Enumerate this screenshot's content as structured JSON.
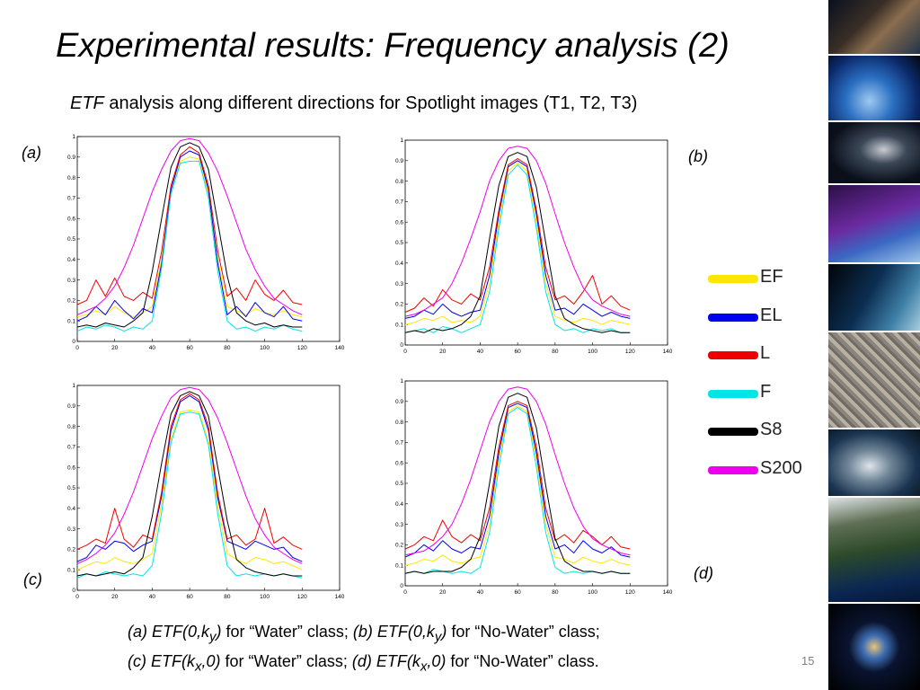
{
  "slide": {
    "title": "Experimental results: Frequency analysis (2)",
    "subtitle_etf": "ETF",
    "subtitle_rest": " analysis along different directions for Spotlight images (T1, T2, T3)",
    "page_number": "15"
  },
  "panel_labels": {
    "a": "(a)",
    "b": "(b)",
    "c": "(c)",
    "d": "(d)"
  },
  "legend": [
    {
      "label": "EF",
      "color": "#ffe600"
    },
    {
      "label": "EL",
      "color": "#0000ee"
    },
    {
      "label": "L",
      "color": "#ee0000"
    },
    {
      "label": "F",
      "color": "#00e5e5"
    },
    {
      "label": "S8",
      "color": "#000000"
    },
    {
      "label": "S200",
      "color": "#ee00ee"
    }
  ],
  "caption": {
    "a": "(a) ETF(0,k",
    "a_sub": "y",
    "a_close": ")",
    "a_text": " for “Water” class; ",
    "b": "(b) ETF(0,k",
    "b_sub": "y",
    "b_close": ")",
    "b_text": " for “No-Water” class;",
    "c": "(c) ETF(k",
    "c_sub": "x",
    "c_close": ",0)",
    "c_text": " for “Water” class; ",
    "d": "(d) ETF(k",
    "d_sub": "x",
    "d_close": ",0)",
    "d_text": " for “No-Water” class."
  },
  "side_images": [
    "earth-from-space",
    "earth-globe",
    "satellite",
    "satellite-over-earth",
    "earth-limb",
    "city-aerial",
    "space-station",
    "italy-satellite-view",
    "satellite-orbits"
  ],
  "chart_data": [
    {
      "id": "a",
      "type": "line",
      "xlim": [
        0,
        140
      ],
      "ylim": [
        0,
        1
      ],
      "xticks": [
        0,
        20,
        40,
        60,
        80,
        100,
        120,
        140
      ],
      "yticks": [
        0,
        0.1,
        0.2,
        0.3,
        0.4,
        0.5,
        0.6,
        0.7,
        0.8,
        0.9,
        1
      ],
      "x": [
        0,
        5,
        10,
        15,
        20,
        25,
        30,
        35,
        40,
        45,
        50,
        55,
        60,
        65,
        70,
        75,
        80,
        85,
        90,
        95,
        100,
        105,
        110,
        115,
        120
      ],
      "series": [
        {
          "name": "EF",
          "color": "#ffe600",
          "values": [
            0.12,
            0.13,
            0.15,
            0.13,
            0.17,
            0.14,
            0.12,
            0.14,
            0.17,
            0.4,
            0.72,
            0.88,
            0.9,
            0.89,
            0.72,
            0.4,
            0.17,
            0.15,
            0.13,
            0.16,
            0.14,
            0.13,
            0.15,
            0.13,
            0.12
          ]
        },
        {
          "name": "EL",
          "color": "#0000ee",
          "values": [
            0.1,
            0.12,
            0.17,
            0.13,
            0.2,
            0.15,
            0.11,
            0.16,
            0.14,
            0.38,
            0.74,
            0.9,
            0.93,
            0.91,
            0.74,
            0.38,
            0.13,
            0.17,
            0.12,
            0.19,
            0.14,
            0.12,
            0.17,
            0.11,
            0.1
          ]
        },
        {
          "name": "L",
          "color": "#ee0000",
          "values": [
            0.18,
            0.2,
            0.3,
            0.22,
            0.31,
            0.22,
            0.2,
            0.24,
            0.21,
            0.44,
            0.76,
            0.91,
            0.95,
            0.92,
            0.76,
            0.44,
            0.22,
            0.26,
            0.2,
            0.3,
            0.23,
            0.2,
            0.25,
            0.19,
            0.18
          ]
        },
        {
          "name": "F",
          "color": "#00e5e5",
          "values": [
            0.05,
            0.07,
            0.06,
            0.08,
            0.07,
            0.05,
            0.07,
            0.06,
            0.1,
            0.36,
            0.72,
            0.87,
            0.88,
            0.88,
            0.7,
            0.34,
            0.1,
            0.06,
            0.07,
            0.05,
            0.07,
            0.06,
            0.08,
            0.06,
            0.05
          ]
        },
        {
          "name": "S8",
          "color": "#000000",
          "values": [
            0.07,
            0.08,
            0.07,
            0.09,
            0.08,
            0.07,
            0.1,
            0.14,
            0.34,
            0.6,
            0.85,
            0.95,
            0.97,
            0.95,
            0.84,
            0.58,
            0.32,
            0.14,
            0.1,
            0.08,
            0.09,
            0.07,
            0.08,
            0.07,
            0.07
          ]
        },
        {
          "name": "S200",
          "color": "#ee00ee",
          "values": [
            0.13,
            0.15,
            0.17,
            0.21,
            0.27,
            0.36,
            0.47,
            0.6,
            0.73,
            0.84,
            0.93,
            0.98,
            0.99,
            0.98,
            0.92,
            0.83,
            0.71,
            0.58,
            0.45,
            0.35,
            0.27,
            0.21,
            0.18,
            0.15,
            0.13
          ]
        }
      ]
    },
    {
      "id": "b",
      "type": "line",
      "xlim": [
        0,
        140
      ],
      "ylim": [
        0,
        1
      ],
      "xticks": [
        0,
        20,
        40,
        60,
        80,
        100,
        120,
        140
      ],
      "yticks": [
        0,
        0.1,
        0.2,
        0.3,
        0.4,
        0.5,
        0.6,
        0.7,
        0.8,
        0.9,
        1
      ],
      "x": [
        0,
        5,
        10,
        15,
        20,
        25,
        30,
        35,
        40,
        45,
        50,
        55,
        60,
        65,
        70,
        75,
        80,
        85,
        90,
        95,
        100,
        105,
        110,
        115,
        120
      ],
      "series": [
        {
          "name": "EF",
          "color": "#ffe600",
          "values": [
            0.1,
            0.11,
            0.13,
            0.12,
            0.14,
            0.11,
            0.12,
            0.11,
            0.14,
            0.3,
            0.6,
            0.85,
            0.89,
            0.85,
            0.6,
            0.3,
            0.14,
            0.12,
            0.11,
            0.13,
            0.12,
            0.1,
            0.12,
            0.11,
            0.1
          ]
        },
        {
          "name": "EL",
          "color": "#0000ee",
          "values": [
            0.13,
            0.14,
            0.17,
            0.15,
            0.2,
            0.16,
            0.14,
            0.16,
            0.17,
            0.34,
            0.64,
            0.87,
            0.9,
            0.87,
            0.64,
            0.34,
            0.17,
            0.18,
            0.15,
            0.2,
            0.17,
            0.14,
            0.16,
            0.14,
            0.13
          ]
        },
        {
          "name": "L",
          "color": "#ee0000",
          "values": [
            0.16,
            0.18,
            0.23,
            0.19,
            0.27,
            0.22,
            0.2,
            0.25,
            0.22,
            0.38,
            0.66,
            0.88,
            0.91,
            0.88,
            0.66,
            0.38,
            0.22,
            0.24,
            0.2,
            0.26,
            0.34,
            0.2,
            0.24,
            0.19,
            0.17
          ]
        },
        {
          "name": "F",
          "color": "#00e5e5",
          "values": [
            0.06,
            0.07,
            0.08,
            0.06,
            0.09,
            0.08,
            0.06,
            0.08,
            0.1,
            0.26,
            0.57,
            0.83,
            0.88,
            0.83,
            0.57,
            0.26,
            0.1,
            0.07,
            0.08,
            0.06,
            0.08,
            0.07,
            0.08,
            0.06,
            0.06
          ]
        },
        {
          "name": "S8",
          "color": "#000000",
          "values": [
            0.06,
            0.07,
            0.06,
            0.08,
            0.07,
            0.08,
            0.1,
            0.14,
            0.24,
            0.52,
            0.78,
            0.92,
            0.94,
            0.92,
            0.77,
            0.5,
            0.24,
            0.13,
            0.1,
            0.08,
            0.07,
            0.06,
            0.07,
            0.06,
            0.06
          ]
        },
        {
          "name": "S200",
          "color": "#ee00ee",
          "values": [
            0.14,
            0.15,
            0.17,
            0.2,
            0.23,
            0.3,
            0.4,
            0.52,
            0.65,
            0.8,
            0.9,
            0.96,
            0.97,
            0.96,
            0.9,
            0.79,
            0.64,
            0.5,
            0.38,
            0.28,
            0.22,
            0.19,
            0.17,
            0.15,
            0.14
          ]
        }
      ]
    },
    {
      "id": "c",
      "type": "line",
      "xlim": [
        0,
        140
      ],
      "ylim": [
        0,
        1
      ],
      "xticks": [
        0,
        20,
        40,
        60,
        80,
        100,
        120,
        140
      ],
      "yticks": [
        0,
        0.1,
        0.2,
        0.3,
        0.4,
        0.5,
        0.6,
        0.7,
        0.8,
        0.9,
        1
      ],
      "x": [
        0,
        5,
        10,
        15,
        20,
        25,
        30,
        35,
        40,
        45,
        50,
        55,
        60,
        65,
        70,
        75,
        80,
        85,
        90,
        95,
        100,
        105,
        110,
        115,
        120
      ],
      "series": [
        {
          "name": "EF",
          "color": "#ffe600",
          "values": [
            0.1,
            0.12,
            0.14,
            0.13,
            0.16,
            0.14,
            0.13,
            0.15,
            0.18,
            0.42,
            0.74,
            0.87,
            0.88,
            0.87,
            0.73,
            0.41,
            0.18,
            0.15,
            0.13,
            0.16,
            0.15,
            0.13,
            0.14,
            0.12,
            0.1
          ]
        },
        {
          "name": "EL",
          "color": "#0000ee",
          "values": [
            0.14,
            0.16,
            0.22,
            0.2,
            0.24,
            0.23,
            0.19,
            0.22,
            0.24,
            0.46,
            0.78,
            0.92,
            0.95,
            0.92,
            0.78,
            0.45,
            0.24,
            0.22,
            0.2,
            0.24,
            0.22,
            0.2,
            0.21,
            0.16,
            0.14
          ]
        },
        {
          "name": "L",
          "color": "#ee0000",
          "values": [
            0.2,
            0.22,
            0.25,
            0.23,
            0.4,
            0.25,
            0.21,
            0.27,
            0.25,
            0.48,
            0.8,
            0.93,
            0.96,
            0.93,
            0.8,
            0.47,
            0.25,
            0.27,
            0.22,
            0.25,
            0.4,
            0.23,
            0.26,
            0.22,
            0.2
          ]
        },
        {
          "name": "F",
          "color": "#00e5e5",
          "values": [
            0.06,
            0.08,
            0.07,
            0.09,
            0.08,
            0.07,
            0.08,
            0.07,
            0.12,
            0.38,
            0.72,
            0.86,
            0.87,
            0.86,
            0.71,
            0.37,
            0.12,
            0.07,
            0.08,
            0.07,
            0.08,
            0.07,
            0.08,
            0.07,
            0.06
          ]
        },
        {
          "name": "S8",
          "color": "#000000",
          "values": [
            0.07,
            0.08,
            0.07,
            0.08,
            0.09,
            0.08,
            0.11,
            0.16,
            0.36,
            0.62,
            0.86,
            0.95,
            0.97,
            0.95,
            0.85,
            0.6,
            0.34,
            0.15,
            0.11,
            0.09,
            0.08,
            0.07,
            0.08,
            0.07,
            0.07
          ]
        },
        {
          "name": "S200",
          "color": "#ee00ee",
          "values": [
            0.13,
            0.15,
            0.18,
            0.22,
            0.28,
            0.37,
            0.48,
            0.61,
            0.74,
            0.85,
            0.94,
            0.98,
            0.99,
            0.98,
            0.93,
            0.84,
            0.72,
            0.59,
            0.46,
            0.35,
            0.27,
            0.21,
            0.18,
            0.15,
            0.13
          ]
        }
      ]
    },
    {
      "id": "d",
      "type": "line",
      "xlim": [
        0,
        140
      ],
      "ylim": [
        0,
        1
      ],
      "xticks": [
        0,
        20,
        40,
        60,
        80,
        100,
        120,
        140
      ],
      "yticks": [
        0,
        0.1,
        0.2,
        0.3,
        0.4,
        0.5,
        0.6,
        0.7,
        0.8,
        0.9,
        1
      ],
      "x": [
        0,
        5,
        10,
        15,
        20,
        25,
        30,
        35,
        40,
        45,
        50,
        55,
        60,
        65,
        70,
        75,
        80,
        85,
        90,
        95,
        100,
        105,
        110,
        115,
        120
      ],
      "series": [
        {
          "name": "EF",
          "color": "#ffe600",
          "values": [
            0.1,
            0.11,
            0.13,
            0.12,
            0.15,
            0.12,
            0.11,
            0.13,
            0.14,
            0.3,
            0.62,
            0.85,
            0.88,
            0.85,
            0.62,
            0.3,
            0.14,
            0.13,
            0.11,
            0.14,
            0.12,
            0.11,
            0.13,
            0.11,
            0.1
          ]
        },
        {
          "name": "EL",
          "color": "#0000ee",
          "values": [
            0.14,
            0.16,
            0.2,
            0.17,
            0.22,
            0.18,
            0.16,
            0.19,
            0.18,
            0.34,
            0.65,
            0.87,
            0.89,
            0.87,
            0.65,
            0.34,
            0.18,
            0.2,
            0.16,
            0.22,
            0.18,
            0.16,
            0.19,
            0.15,
            0.14
          ]
        },
        {
          "name": "L",
          "color": "#ee0000",
          "values": [
            0.18,
            0.2,
            0.24,
            0.22,
            0.32,
            0.24,
            0.21,
            0.25,
            0.22,
            0.38,
            0.68,
            0.88,
            0.9,
            0.88,
            0.68,
            0.38,
            0.22,
            0.25,
            0.21,
            0.27,
            0.24,
            0.2,
            0.24,
            0.19,
            0.18
          ]
        },
        {
          "name": "F",
          "color": "#00e5e5",
          "values": [
            0.06,
            0.07,
            0.06,
            0.08,
            0.07,
            0.06,
            0.07,
            0.06,
            0.09,
            0.26,
            0.58,
            0.84,
            0.87,
            0.84,
            0.58,
            0.26,
            0.09,
            0.06,
            0.07,
            0.06,
            0.07,
            0.06,
            0.07,
            0.06,
            0.06
          ]
        },
        {
          "name": "S8",
          "color": "#000000",
          "values": [
            0.06,
            0.07,
            0.06,
            0.07,
            0.07,
            0.07,
            0.09,
            0.13,
            0.24,
            0.5,
            0.78,
            0.92,
            0.94,
            0.92,
            0.77,
            0.49,
            0.23,
            0.12,
            0.09,
            0.07,
            0.07,
            0.06,
            0.07,
            0.06,
            0.06
          ]
        },
        {
          "name": "S200",
          "color": "#ee00ee",
          "values": [
            0.15,
            0.16,
            0.17,
            0.2,
            0.24,
            0.3,
            0.4,
            0.52,
            0.66,
            0.8,
            0.9,
            0.96,
            0.97,
            0.96,
            0.9,
            0.79,
            0.64,
            0.5,
            0.38,
            0.29,
            0.23,
            0.2,
            0.18,
            0.16,
            0.15
          ]
        }
      ]
    }
  ]
}
